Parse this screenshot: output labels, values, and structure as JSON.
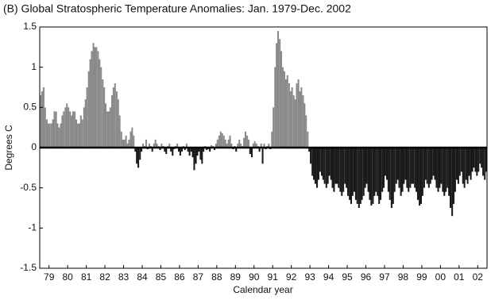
{
  "chart_data": {
    "type": "bar",
    "title": "(B) Global Stratospheric Temperature Anomalies: Jan. 1979-Dec. 2002",
    "xlabel": "Calendar year",
    "ylabel": "Degrees C",
    "colors": {
      "positive": "#8a8a8a",
      "negative": "#1a1a1a"
    },
    "xlim": [
      1979,
      2003
    ],
    "ylim": [
      -1.5,
      1.5
    ],
    "yticks": [
      1.5,
      1,
      0.5,
      0,
      -0.5,
      -1,
      -1.5
    ],
    "xticks": [
      {
        "value": 1979.5,
        "label": "79"
      },
      {
        "value": 1980.5,
        "label": "80"
      },
      {
        "value": 1981.5,
        "label": "81"
      },
      {
        "value": 1982.5,
        "label": "82"
      },
      {
        "value": 1983.5,
        "label": "83"
      },
      {
        "value": 1984.5,
        "label": "84"
      },
      {
        "value": 1985.5,
        "label": "85"
      },
      {
        "value": 1986.5,
        "label": "86"
      },
      {
        "value": 1987.5,
        "label": "87"
      },
      {
        "value": 1988.5,
        "label": "88"
      },
      {
        "value": 1989.5,
        "label": "89"
      },
      {
        "value": 1990.5,
        "label": "90"
      },
      {
        "value": 1991.5,
        "label": "91"
      },
      {
        "value": 1992.5,
        "label": "92"
      },
      {
        "value": 1993.5,
        "label": "93"
      },
      {
        "value": 1994.5,
        "label": "94"
      },
      {
        "value": 1995.5,
        "label": "95"
      },
      {
        "value": 1996.5,
        "label": "96"
      },
      {
        "value": 1997.5,
        "label": "97"
      },
      {
        "value": 1998.5,
        "label": "98"
      },
      {
        "value": 1999.5,
        "label": "99"
      },
      {
        "value": 2000.5,
        "label": "00"
      },
      {
        "value": 2001.5,
        "label": "01"
      },
      {
        "value": 2002.5,
        "label": "02"
      }
    ],
    "x": [
      1979.04,
      1979.13,
      1979.21,
      1979.29,
      1979.38,
      1979.46,
      1979.54,
      1979.63,
      1979.71,
      1979.79,
      1979.88,
      1979.96,
      1980.04,
      1980.13,
      1980.21,
      1980.29,
      1980.38,
      1980.46,
      1980.54,
      1980.63,
      1980.71,
      1980.79,
      1980.88,
      1980.96,
      1981.04,
      1981.13,
      1981.21,
      1981.29,
      1981.38,
      1981.46,
      1981.54,
      1981.63,
      1981.71,
      1981.79,
      1981.88,
      1981.96,
      1982.04,
      1982.13,
      1982.21,
      1982.29,
      1982.38,
      1982.46,
      1982.54,
      1982.63,
      1982.71,
      1982.79,
      1982.88,
      1982.96,
      1983.04,
      1983.13,
      1983.21,
      1983.29,
      1983.38,
      1983.46,
      1983.54,
      1983.63,
      1983.71,
      1983.79,
      1983.88,
      1983.96,
      1984.04,
      1984.13,
      1984.21,
      1984.29,
      1984.38,
      1984.46,
      1984.54,
      1984.63,
      1984.71,
      1984.79,
      1984.88,
      1984.96,
      1985.04,
      1985.13,
      1985.21,
      1985.29,
      1985.38,
      1985.46,
      1985.54,
      1985.63,
      1985.71,
      1985.79,
      1985.88,
      1985.96,
      1986.04,
      1986.13,
      1986.21,
      1986.29,
      1986.38,
      1986.46,
      1986.54,
      1986.63,
      1986.71,
      1986.79,
      1986.88,
      1986.96,
      1987.04,
      1987.13,
      1987.21,
      1987.29,
      1987.38,
      1987.46,
      1987.54,
      1987.63,
      1987.71,
      1987.79,
      1987.88,
      1987.96,
      1988.04,
      1988.13,
      1988.21,
      1988.29,
      1988.38,
      1988.46,
      1988.54,
      1988.63,
      1988.71,
      1988.79,
      1988.88,
      1988.96,
      1989.04,
      1989.13,
      1989.21,
      1989.29,
      1989.38,
      1989.46,
      1989.54,
      1989.63,
      1989.71,
      1989.79,
      1989.88,
      1989.96,
      1990.04,
      1990.13,
      1990.21,
      1990.29,
      1990.38,
      1990.46,
      1990.54,
      1990.63,
      1990.71,
      1990.79,
      1990.88,
      1990.96,
      1991.04,
      1991.13,
      1991.21,
      1991.29,
      1991.38,
      1991.46,
      1991.54,
      1991.63,
      1991.71,
      1991.79,
      1991.88,
      1991.96,
      1992.04,
      1992.13,
      1992.21,
      1992.29,
      1992.38,
      1992.46,
      1992.54,
      1992.63,
      1992.71,
      1992.79,
      1992.88,
      1992.96,
      1993.04,
      1993.13,
      1993.21,
      1993.29,
      1993.38,
      1993.46,
      1993.54,
      1993.63,
      1993.71,
      1993.79,
      1993.88,
      1993.96,
      1994.04,
      1994.13,
      1994.21,
      1994.29,
      1994.38,
      1994.46,
      1994.54,
      1994.63,
      1994.71,
      1994.79,
      1994.88,
      1994.96,
      1995.04,
      1995.13,
      1995.21,
      1995.29,
      1995.38,
      1995.46,
      1995.54,
      1995.63,
      1995.71,
      1995.79,
      1995.88,
      1995.96,
      1996.04,
      1996.13,
      1996.21,
      1996.29,
      1996.38,
      1996.46,
      1996.54,
      1996.63,
      1996.71,
      1996.79,
      1996.88,
      1996.96,
      1997.04,
      1997.13,
      1997.21,
      1997.29,
      1997.38,
      1997.46,
      1997.54,
      1997.63,
      1997.71,
      1997.79,
      1997.88,
      1997.96,
      1998.04,
      1998.13,
      1998.21,
      1998.29,
      1998.38,
      1998.46,
      1998.54,
      1998.63,
      1998.71,
      1998.79,
      1998.88,
      1998.96,
      1999.04,
      1999.13,
      1999.21,
      1999.29,
      1999.38,
      1999.46,
      1999.54,
      1999.63,
      1999.71,
      1999.79,
      1999.88,
      1999.96,
      2000.04,
      2000.13,
      2000.21,
      2000.29,
      2000.38,
      2000.46,
      2000.54,
      2000.63,
      2000.71,
      2000.79,
      2000.88,
      2000.96,
      2001.04,
      2001.13,
      2001.21,
      2001.29,
      2001.38,
      2001.46,
      2001.54,
      2001.63,
      2001.71,
      2001.79,
      2001.88,
      2001.96,
      2002.04,
      2002.13,
      2002.21,
      2002.29,
      2002.38,
      2002.46,
      2002.54,
      2002.63,
      2002.71,
      2002.79,
      2002.88,
      2002.96
    ],
    "values": [
      0.65,
      0.7,
      0.75,
      0.5,
      0.35,
      0.3,
      0.3,
      0.3,
      0.35,
      0.45,
      0.45,
      0.3,
      0.25,
      0.3,
      0.4,
      0.45,
      0.5,
      0.55,
      0.5,
      0.45,
      0.4,
      0.45,
      0.45,
      0.35,
      0.3,
      0.3,
      0.4,
      0.35,
      0.5,
      0.6,
      0.75,
      0.95,
      1.1,
      1.2,
      1.3,
      1.25,
      1.25,
      1.2,
      1.1,
      1.0,
      0.85,
      0.75,
      0.55,
      0.45,
      0.45,
      0.5,
      0.65,
      0.75,
      0.8,
      0.7,
      0.6,
      0.4,
      0.2,
      0.1,
      0.1,
      0.15,
      0.05,
      0.1,
      0.2,
      0.25,
      0.15,
      -0.05,
      -0.2,
      -0.25,
      -0.15,
      -0.05,
      0.05,
      0.02,
      0.1,
      -0.02,
      0.05,
      0.02,
      -0.05,
      0.05,
      0.1,
      0.05,
      0.02,
      -0.03,
      0.05,
      0.02,
      -0.05,
      -0.08,
      0.02,
      0.05,
      -0.05,
      -0.1,
      -0.02,
      0.02,
      0.05,
      -0.05,
      -0.1,
      -0.05,
      0.02,
      -0.03,
      0.05,
      -0.05,
      -0.1,
      -0.05,
      -0.12,
      -0.28,
      -0.2,
      -0.1,
      -0.05,
      -0.15,
      -0.2,
      -0.05,
      0.02,
      -0.03,
      -0.02,
      -0.05,
      0.03,
      0.02,
      -0.03,
      0.05,
      0.1,
      0.15,
      0.2,
      0.18,
      0.15,
      0.1,
      0.05,
      0.1,
      0.15,
      0.05,
      -0.02,
      0.02,
      -0.05,
      0.05,
      0.1,
      0.05,
      0.02,
      0.12,
      0.2,
      0.15,
      0.1,
      -0.08,
      -0.12,
      0.05,
      0.08,
      0.05,
      0.02,
      -0.05,
      0.05,
      -0.2,
      0.05,
      -0.02,
      0.02,
      0.05,
      -0.02,
      0.2,
      0.5,
      1.0,
      1.3,
      1.45,
      1.35,
      1.2,
      1.0,
      0.95,
      0.85,
      0.9,
      0.8,
      0.7,
      0.75,
      0.65,
      0.6,
      0.8,
      0.85,
      0.7,
      0.75,
      0.65,
      0.55,
      0.4,
      0.2,
      -0.05,
      -0.2,
      -0.35,
      -0.4,
      -0.45,
      -0.5,
      -0.4,
      -0.3,
      -0.35,
      -0.4,
      -0.45,
      -0.5,
      -0.45,
      -0.35,
      -0.4,
      -0.5,
      -0.55,
      -0.45,
      -0.45,
      -0.5,
      -0.55,
      -0.6,
      -0.55,
      -0.45,
      -0.5,
      -0.6,
      -0.65,
      -0.7,
      -0.6,
      -0.55,
      -0.65,
      -0.7,
      -0.75,
      -0.7,
      -0.65,
      -0.6,
      -0.5,
      -0.45,
      -0.55,
      -0.65,
      -0.72,
      -0.7,
      -0.6,
      -0.55,
      -0.6,
      -0.7,
      -0.65,
      -0.55,
      -0.5,
      -0.35,
      -0.4,
      -0.55,
      -0.65,
      -0.75,
      -0.7,
      -0.55,
      -0.45,
      -0.4,
      -0.5,
      -0.6,
      -0.55,
      -0.45,
      -0.4,
      -0.5,
      -0.55,
      -0.5,
      -0.45,
      -0.45,
      -0.5,
      -0.55,
      -0.65,
      -0.72,
      -0.7,
      -0.6,
      -0.5,
      -0.4,
      -0.45,
      -0.5,
      -0.45,
      -0.4,
      -0.35,
      -0.4,
      -0.5,
      -0.55,
      -0.5,
      -0.45,
      -0.55,
      -0.6,
      -0.55,
      -0.5,
      -0.6,
      -0.75,
      -0.85,
      -0.7,
      -0.55,
      -0.4,
      -0.45,
      -0.35,
      -0.3,
      -0.45,
      -0.5,
      -0.4,
      -0.45,
      -0.35,
      -0.4,
      -0.3,
      -0.25,
      -0.3,
      -0.35,
      -0.3,
      -0.2,
      -0.25,
      -0.35,
      -0.4,
      -0.3
    ]
  }
}
